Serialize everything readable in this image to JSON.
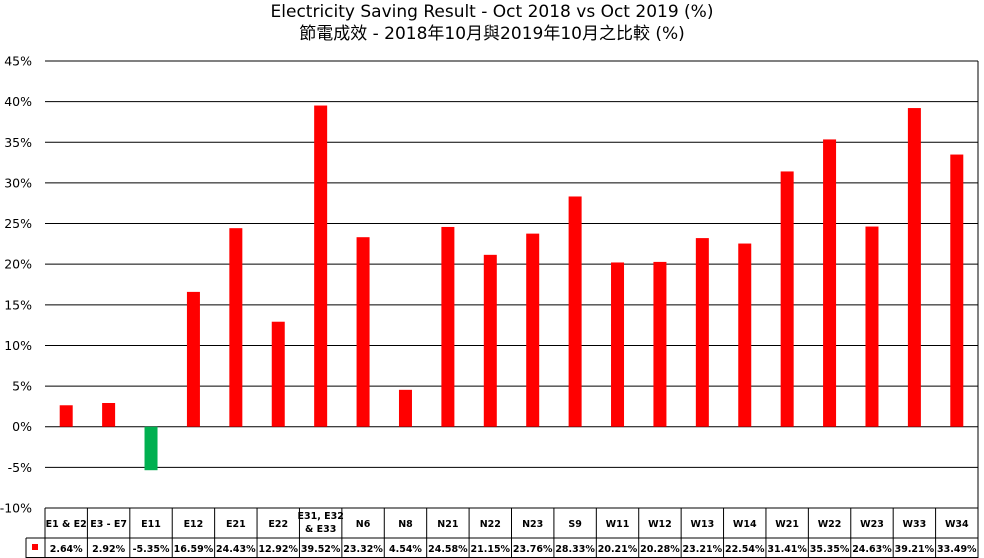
{
  "chart_data": {
    "type": "bar",
    "title": "Electricity Saving Result - Oct 2018 vs Oct 2019 (%)",
    "subtitle": "節電成效 - 2018年10月與2019年10月之比較 (%)",
    "categories": [
      "E1 & E2",
      "E3 - E7",
      "E11",
      "E12",
      "E21",
      "E22",
      "E31, E32 & E33",
      "N6",
      "N8",
      "N21",
      "N22",
      "N23",
      "S9",
      "W11",
      "W12",
      "W13",
      "W14",
      "W21",
      "W22",
      "W23",
      "W33",
      "W34"
    ],
    "series": [
      {
        "values": [
          2.64,
          2.92,
          -5.35,
          16.59,
          24.43,
          12.92,
          39.52,
          23.32,
          4.54,
          24.58,
          21.15,
          23.76,
          28.33,
          20.21,
          20.28,
          23.21,
          22.54,
          31.41,
          35.35,
          24.63,
          39.21,
          33.49
        ]
      }
    ],
    "value_labels": [
      "2.64%",
      "2.92%",
      "-5.35%",
      "16.59%",
      "24.43%",
      "12.92%",
      "39.52%",
      "23.32%",
      "4.54%",
      "24.58%",
      "21.15%",
      "23.76%",
      "28.33%",
      "20.21%",
      "20.28%",
      "23.21%",
      "22.54%",
      "31.41%",
      "35.35%",
      "24.63%",
      "39.21%",
      "33.49%"
    ],
    "y_ticks": [
      "45%",
      "40%",
      "35%",
      "30%",
      "25%",
      "20%",
      "15%",
      "10%",
      "5%",
      "0%",
      "-5%",
      "-10%"
    ],
    "ylim": [
      -10,
      45
    ],
    "grid": true,
    "legend": "data table",
    "colors": {
      "positive": "#ff0000",
      "negative": "#00b050",
      "grid": "#000000"
    }
  }
}
